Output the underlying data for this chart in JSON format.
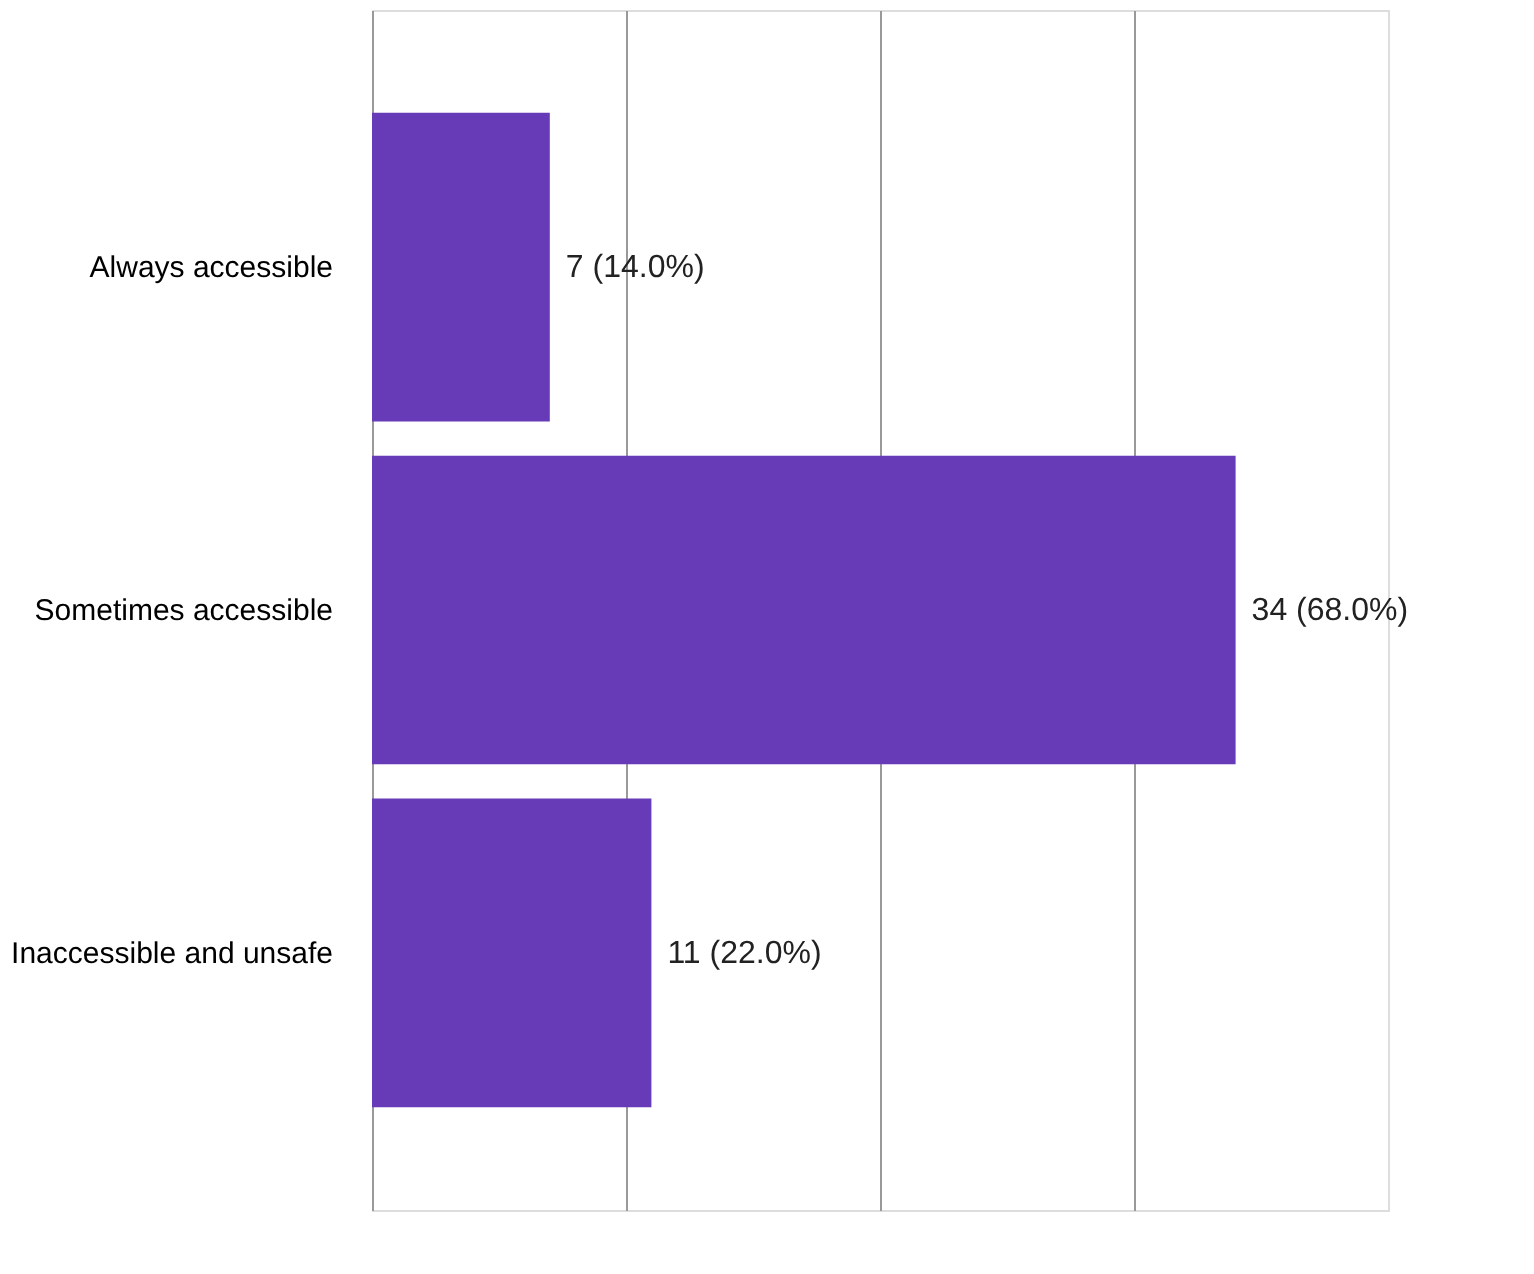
{
  "chart_data": {
    "type": "bar",
    "orientation": "horizontal",
    "categories": [
      "Always accessible",
      "Sometimes accessible",
      "Inaccessible and unsafe"
    ],
    "values": [
      7,
      34,
      11
    ],
    "color": "#673ab7",
    "value_labels": [
      "7 (14.0%)",
      "34 (68.0%)",
      "11 (22.0%)"
    ],
    "xlim": [
      0,
      40
    ],
    "xticks": [
      {
        "value": 0,
        "label": null
      },
      {
        "value": 10,
        "label": null
      },
      {
        "value": 20,
        "label": null
      },
      {
        "value": 30,
        "label": null
      }
    ],
    "tick_labels": "y",
    "grid": "x"
  }
}
